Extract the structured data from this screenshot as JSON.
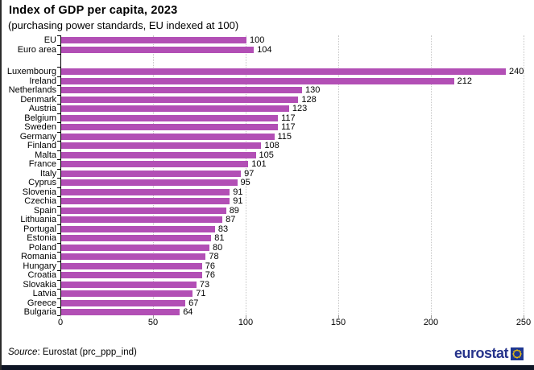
{
  "header": {
    "title": "Index of GDP per capita, 2023",
    "subtitle": "(purchasing power standards, EU indexed at 100)"
  },
  "footer": {
    "source_prefix": "Source",
    "source_rest": ": Eurostat (prc_ppp_ind)",
    "logo_text": "eurostat"
  },
  "colors": {
    "bar": "#b24fb5",
    "logo_blue": "#27348b",
    "flag_bg": "#1e3791",
    "flag_stars": "#ffcc00",
    "bottom_strip": "#0e1525",
    "gridline": "#c6c6c6",
    "axis": "#000000"
  },
  "chart_data": {
    "type": "bar",
    "orientation": "horizontal",
    "title": "Index of GDP per capita, 2023",
    "subtitle": "(purchasing power standards, EU indexed at 100)",
    "xlabel": "",
    "ylabel": "",
    "xlim": [
      0,
      250
    ],
    "x_ticks": [
      0,
      50,
      100,
      150,
      200,
      250
    ],
    "grid": "vertical-dotted",
    "legend": "none",
    "source": "Eurostat (prc_ppp_ind)",
    "groups": [
      {
        "name": "aggregates",
        "categories": [
          "EU",
          "Euro area"
        ],
        "values": [
          100,
          104
        ]
      },
      {
        "name": "countries",
        "categories": [
          "Luxembourg",
          "Ireland",
          "Netherlands",
          "Denmark",
          "Austria",
          "Belgium",
          "Sweden",
          "Germany",
          "Finland",
          "Malta",
          "France",
          "Italy",
          "Cyprus",
          "Slovenia",
          "Czechia",
          "Spain",
          "Lithuania",
          "Portugal",
          "Estonia",
          "Poland",
          "Romania",
          "Hungary",
          "Croatia",
          "Slovakia",
          "Latvia",
          "Greece",
          "Bulgaria"
        ],
        "values": [
          240,
          212,
          130,
          128,
          123,
          117,
          117,
          115,
          108,
          105,
          101,
          97,
          95,
          91,
          91,
          89,
          87,
          83,
          81,
          80,
          78,
          76,
          76,
          73,
          71,
          67,
          64
        ]
      }
    ]
  }
}
